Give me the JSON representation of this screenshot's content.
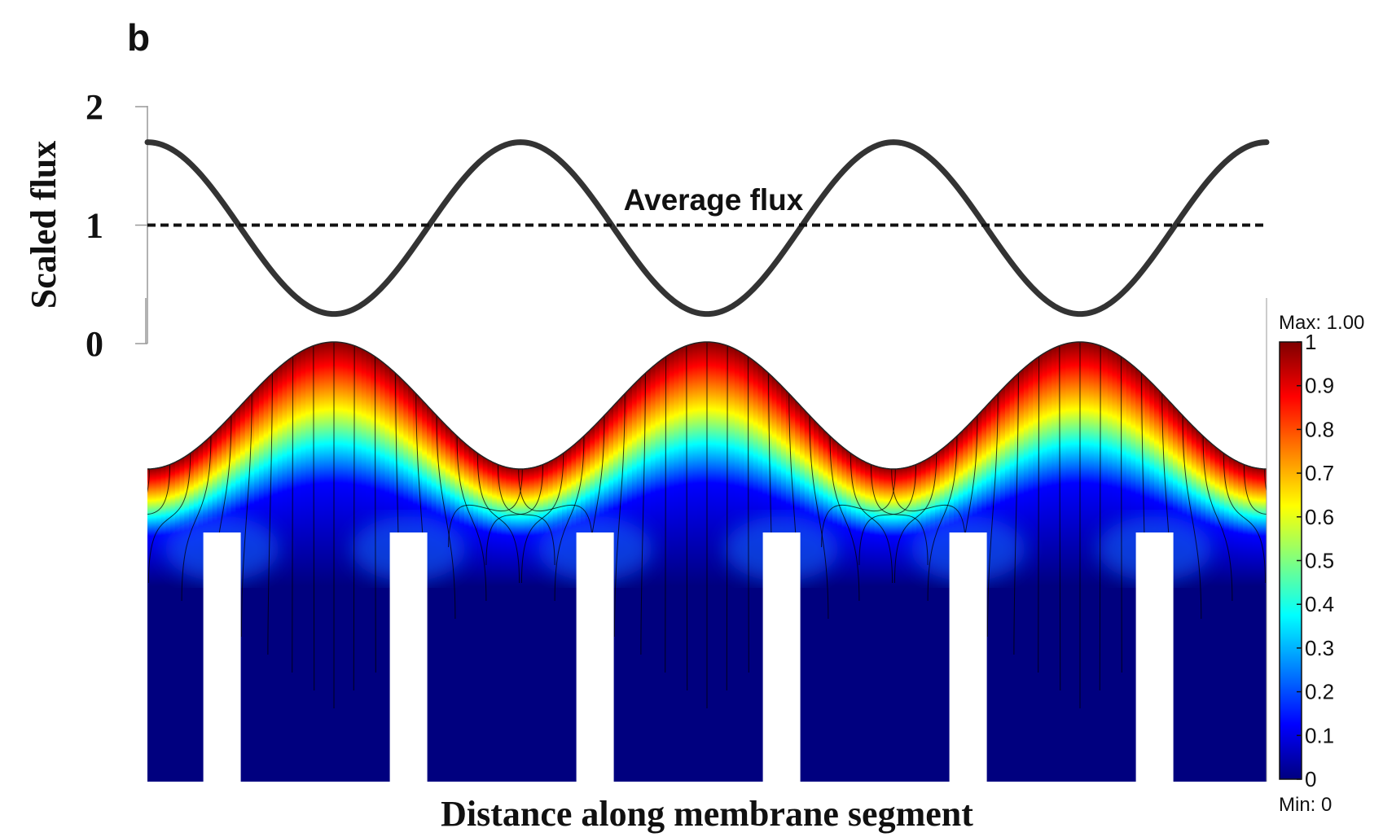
{
  "panel_label": "b",
  "chart_data": [
    {
      "type": "line",
      "title": "",
      "xlabel": "",
      "ylabel": "Scaled flux",
      "ylim": [
        0,
        2
      ],
      "yticks": [
        "0",
        "1",
        "2"
      ],
      "grid": false,
      "series": [
        {
          "style": "solid",
          "color": "#333333",
          "x": [
            0,
            0.25,
            0.5,
            0.75,
            1,
            1.25,
            1.5,
            1.75,
            2,
            2.25,
            2.5,
            2.75,
            3
          ],
          "values": [
            1.7,
            0.97,
            0.25,
            0.97,
            1.7,
            0.97,
            0.25,
            0.97,
            1.7,
            0.97,
            0.25,
            0.97,
            1.7
          ]
        },
        {
          "style": "dashed",
          "color": "#111111",
          "x": [
            0,
            3
          ],
          "values": [
            1.0,
            1.0
          ]
        }
      ],
      "annotations": [
        {
          "text": "Average flux"
        }
      ]
    },
    {
      "type": "heatmap",
      "title": "",
      "xlabel": "Distance along membrane segment",
      "ylabel": "",
      "colormap": "jet",
      "colorbar": {
        "max_label": "Max: 1.00",
        "min_label": "Min: 0",
        "ticks": [
          "0",
          "0.1",
          "0.2",
          "0.3",
          "0.4",
          "0.5",
          "0.6",
          "0.7",
          "0.8",
          "0.9",
          "1"
        ],
        "range": [
          0,
          1
        ]
      },
      "periods": 3,
      "slots": 6
    }
  ]
}
